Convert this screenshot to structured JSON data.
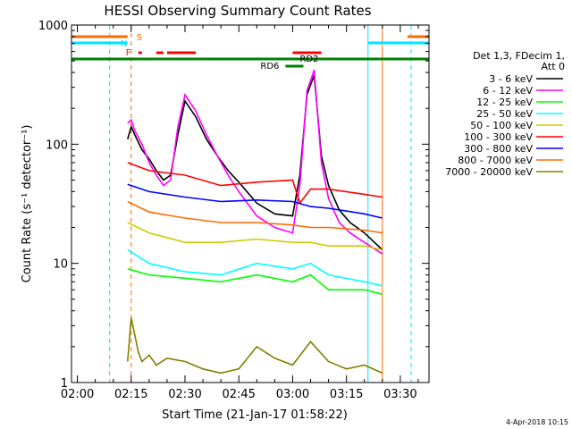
{
  "chart_data": {
    "type": "line",
    "title": "HESSI Observing Summary Count Rates",
    "xlabel": "Start Time (21-Jan-17 01:58:22)",
    "ylabel": "Count Rate (s⁻¹ detector⁻¹)",
    "y_scale": "log",
    "ylim": [
      1,
      1000
    ],
    "xlim": [
      "01:58:22",
      "03:38:00"
    ],
    "x_ticks": [
      "02:00",
      "02:15",
      "02:30",
      "02:45",
      "03:00",
      "03:15",
      "03:30"
    ],
    "y_ticks": [
      "1",
      "10",
      "100",
      "1000"
    ],
    "legend_header": [
      "Det 1,3, FDecim 1,",
      "Att 0"
    ],
    "legend_position": "right",
    "timestamp": "4-Apr-2018 10:15",
    "flags": [
      {
        "label": "S",
        "color": "#ff6a00"
      },
      {
        "label": "N",
        "color": "#00e5ff"
      },
      {
        "label": "F",
        "color": "#ff0000"
      },
      {
        "label": "RD2",
        "color": "#008000"
      },
      {
        "label": "RD6",
        "color": "#008000"
      }
    ],
    "series": [
      {
        "name": "3 - 6 keV",
        "color": "#000000",
        "x": [
          "02:14",
          "02:15",
          "02:16",
          "02:18",
          "02:20",
          "02:22",
          "02:24",
          "02:26",
          "02:28",
          "02:30",
          "02:33",
          "02:36",
          "02:39",
          "02:42",
          "02:45",
          "02:50",
          "02:55",
          "03:00",
          "03:02",
          "03:04",
          "03:06",
          "03:08",
          "03:10",
          "03:13",
          "03:16",
          "03:20",
          "03:25"
        ],
        "values": [
          110,
          140,
          120,
          90,
          75,
          60,
          50,
          55,
          120,
          230,
          170,
          110,
          80,
          60,
          48,
          32,
          26,
          25,
          55,
          260,
          380,
          80,
          45,
          28,
          22,
          18,
          13
        ]
      },
      {
        "name": "6 - 12 keV",
        "color": "#ff00ff",
        "x": [
          "02:14",
          "02:15",
          "02:16",
          "02:18",
          "02:20",
          "02:22",
          "02:24",
          "02:26",
          "02:28",
          "02:30",
          "02:33",
          "02:36",
          "02:39",
          "02:42",
          "02:45",
          "02:50",
          "02:55",
          "03:00",
          "03:02",
          "03:04",
          "03:06",
          "03:08",
          "03:10",
          "03:13",
          "03:16",
          "03:20",
          "03:25"
        ],
        "values": [
          150,
          160,
          130,
          100,
          70,
          55,
          45,
          50,
          140,
          260,
          190,
          120,
          80,
          55,
          40,
          25,
          20,
          18,
          45,
          280,
          420,
          70,
          35,
          22,
          18,
          15,
          12
        ]
      },
      {
        "name": "12 - 25 keV",
        "color": "#00ff00",
        "x": [
          "02:14",
          "02:20",
          "02:30",
          "02:40",
          "02:50",
          "03:00",
          "03:05",
          "03:10",
          "03:20",
          "03:25"
        ],
        "values": [
          9,
          8,
          7.5,
          7,
          8,
          7,
          8,
          6,
          6,
          5.5
        ]
      },
      {
        "name": "25 - 50 keV",
        "color": "#00ffff",
        "x": [
          "02:14",
          "02:20",
          "02:30",
          "02:40",
          "02:50",
          "03:00",
          "03:05",
          "03:10",
          "03:20",
          "03:25"
        ],
        "values": [
          13,
          10,
          8.5,
          8,
          10,
          9,
          10,
          8,
          7,
          6.5
        ]
      },
      {
        "name": "50 - 100 keV",
        "color": "#cccc00",
        "x": [
          "02:14",
          "02:20",
          "02:30",
          "02:40",
          "02:50",
          "03:00",
          "03:05",
          "03:10",
          "03:20",
          "03:25"
        ],
        "values": [
          22,
          18,
          15,
          15,
          16,
          15,
          15,
          14,
          14,
          13
        ]
      },
      {
        "name": "100 - 300 keV",
        "color": "#ff0000",
        "x": [
          "02:14",
          "02:20",
          "02:30",
          "02:40",
          "02:50",
          "03:00",
          "03:02",
          "03:05",
          "03:10",
          "03:20",
          "03:25"
        ],
        "values": [
          70,
          60,
          55,
          45,
          48,
          50,
          32,
          42,
          42,
          38,
          36
        ]
      },
      {
        "name": "300 - 800 keV",
        "color": "#0000ff",
        "x": [
          "02:14",
          "02:20",
          "02:30",
          "02:40",
          "02:50",
          "03:00",
          "03:05",
          "03:10",
          "03:20",
          "03:25"
        ],
        "values": [
          46,
          40,
          36,
          33,
          34,
          33,
          30,
          29,
          26,
          24
        ]
      },
      {
        "name": "800 - 7000 keV",
        "color": "#ff6a00",
        "x": [
          "02:14",
          "02:20",
          "02:30",
          "02:40",
          "02:50",
          "03:00",
          "03:05",
          "03:10",
          "03:20",
          "03:25"
        ],
        "values": [
          33,
          27,
          24,
          22,
          22,
          21,
          20,
          20,
          19,
          18
        ]
      },
      {
        "name": "7000 - 20000 keV",
        "color": "#808000",
        "x": [
          "02:14",
          "02:15",
          "02:16",
          "02:17",
          "02:18",
          "02:20",
          "02:22",
          "02:25",
          "02:30",
          "02:35",
          "02:40",
          "02:45",
          "02:50",
          "02:55",
          "03:00",
          "03:05",
          "03:10",
          "03:15",
          "03:20",
          "03:25"
        ],
        "values": [
          1.5,
          3.5,
          2.5,
          1.8,
          1.5,
          1.7,
          1.4,
          1.6,
          1.5,
          1.3,
          1.2,
          1.3,
          2.0,
          1.6,
          1.4,
          2.2,
          1.5,
          1.3,
          1.4,
          1.2
        ]
      }
    ]
  }
}
